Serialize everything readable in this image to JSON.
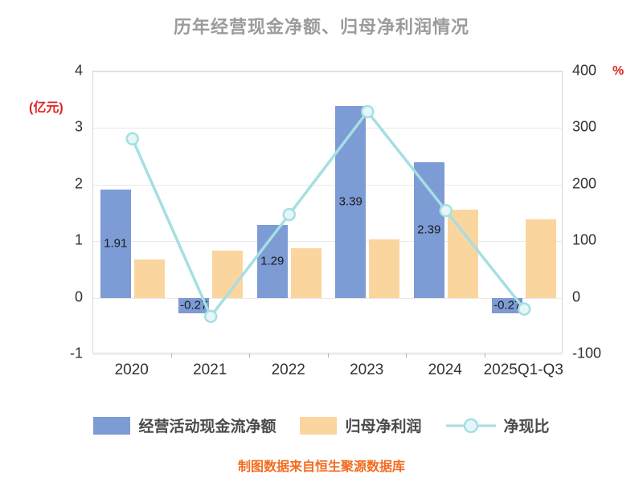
{
  "title": "历年经营现金净额、归母净利润情况",
  "footer": "制图数据来自恒生聚源数据库",
  "colors": {
    "title_text": "#9b9b9b",
    "axis_label_red": "#e02424",
    "tick_text": "#333333",
    "bar_blue": "#7d9bd4",
    "bar_orange": "#fbd59e",
    "line_cyan": "#a5dfe2",
    "marker_fill": "#e6f6f8",
    "legend_text": "#4a4a4a",
    "footer_orange": "#f26c1f",
    "gridline": "#e9e9e9"
  },
  "chart_data": {
    "type": "bar+line",
    "title": "历年经营现金净额、归母净利润情况",
    "categories": [
      "2020",
      "2021",
      "2022",
      "2023",
      "2024",
      "2025Q1-Q3"
    ],
    "left_axis": {
      "label": "(亿元)",
      "min": -1,
      "max": 4,
      "ticks": [
        4,
        3,
        2,
        1,
        0,
        -1
      ]
    },
    "right_axis": {
      "label": "%",
      "min": -100,
      "max": 400,
      "ticks": [
        400,
        300,
        200,
        100,
        0,
        -100
      ]
    },
    "bar_series": [
      {
        "name": "经营活动现金流净额",
        "values": [
          1.91,
          -0.27,
          1.29,
          3.39,
          2.39,
          -0.27
        ],
        "show_labels": true
      },
      {
        "name": "归母净利润",
        "values": [
          0.68,
          0.83,
          0.88,
          1.03,
          1.55,
          1.38
        ],
        "show_labels": false
      }
    ],
    "line_series": {
      "name": "净现比",
      "values": [
        281,
        -33,
        147,
        329,
        154,
        -20
      ],
      "axis": "right"
    },
    "legend": [
      "经营活动现金流净额",
      "归母净利润",
      "净现比"
    ],
    "grid": true,
    "legend_position": "bottom"
  }
}
